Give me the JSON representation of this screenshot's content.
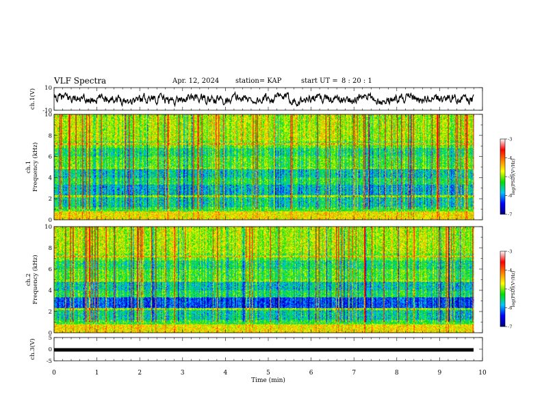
{
  "header": {
    "title": "VLF Spectra",
    "date": "Apr. 12, 2024",
    "station": "station= KAP",
    "start_ut_label": "start  UT =",
    "start_ut": "8 : 20 : 1"
  },
  "chart_data": [
    {
      "type": "line",
      "panel": "ch1-waveform",
      "ylabel": "ch.1(V)",
      "ylim": [
        -10,
        10
      ],
      "yticks": [
        "10",
        "-10"
      ],
      "xlim": [
        0,
        10
      ],
      "approx_range": [
        -6,
        6
      ],
      "note_values": "noisy waveform spanning roughly 0 to 9.8 min"
    },
    {
      "type": "heatmap",
      "panel": "ch1-spectrogram",
      "ylabel": "ch.1\nFrequency (kHz)",
      "ylim": [
        0,
        10
      ],
      "yticks": [
        "0",
        "2",
        "4",
        "6",
        "8",
        "10"
      ],
      "xlim": [
        0,
        10
      ],
      "data_extent_min": 9.8,
      "colorbar": {
        "label": "log(PSD)(V²/Hz)",
        "range": [
          -7,
          -3
        ],
        "ticks": [
          "-3",
          "-4",
          "-5",
          "-6",
          "-7"
        ]
      }
    },
    {
      "type": "heatmap",
      "panel": "ch2-spectrogram",
      "ylabel": "ch.2\nFrequency (kHz)",
      "ylim": [
        0,
        10
      ],
      "yticks": [
        "0",
        "2",
        "4",
        "6",
        "8",
        "10"
      ],
      "xlim": [
        0,
        10
      ],
      "data_extent_min": 9.8,
      "colorbar": {
        "label": "log(PSD)(V²/Hz)",
        "range": [
          -7,
          -3
        ],
        "ticks": [
          "-3",
          "-4",
          "-5",
          "-6",
          "-7"
        ]
      }
    },
    {
      "type": "line",
      "panel": "ch3-waveform",
      "ylabel": "ch.3(V)",
      "ylim": [
        -5,
        5
      ],
      "yticks": [
        "5",
        "0",
        "-5"
      ],
      "xlim": [
        0,
        10
      ],
      "approx_level": -0.3
    }
  ],
  "x_axis": {
    "label": "Time (min)",
    "ticks": [
      "0",
      "1",
      "2",
      "3",
      "4",
      "5",
      "6",
      "7",
      "8",
      "9",
      "10"
    ]
  },
  "colors": {
    "scale": [
      "#000080",
      "#0000ff",
      "#00c8ff",
      "#00e000",
      "#ffff00",
      "#ff8000",
      "#ff0000",
      "#ffffff"
    ]
  }
}
